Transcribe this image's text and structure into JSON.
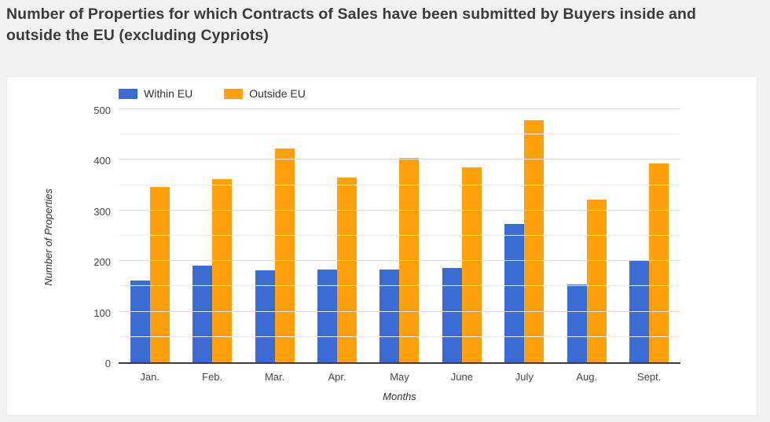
{
  "title": "Number of Properties for which Contracts of Sales have been submitted by Buyers inside and outside the EU (excluding Cypriots)",
  "colors": {
    "within_eu": "#3b6cd3",
    "outside_eu": "#ffa00c",
    "page_background": "#f1f1f1",
    "card_background": "#ffffff",
    "title_text": "#3b3b3b"
  },
  "chart_data": {
    "type": "bar",
    "title": "Number of Properties for which Contracts of Sales have been submitted by Buyers inside and outside the EU (excluding Cypriots)",
    "categories": [
      "Jan.",
      "Feb.",
      "Mar.",
      "Apr.",
      "May",
      "June",
      "July",
      "Aug.",
      "Sept."
    ],
    "series": [
      {
        "name": "Within EU",
        "color": "#3b6cd3",
        "values": [
          162,
          191,
          182,
          184,
          183,
          187,
          273,
          153,
          200
        ]
      },
      {
        "name": "Outside EU",
        "color": "#ffa00c",
        "values": [
          347,
          362,
          423,
          365,
          404,
          385,
          478,
          322,
          393
        ]
      }
    ],
    "xlabel": "Months",
    "ylabel": "Number of Properties",
    "ylim": [
      0,
      500
    ],
    "ytick_step": 100,
    "minor_grid_step": 50,
    "yticks": [
      0,
      100,
      200,
      300,
      400,
      500
    ],
    "grid": true,
    "legend_position": "top-left"
  }
}
